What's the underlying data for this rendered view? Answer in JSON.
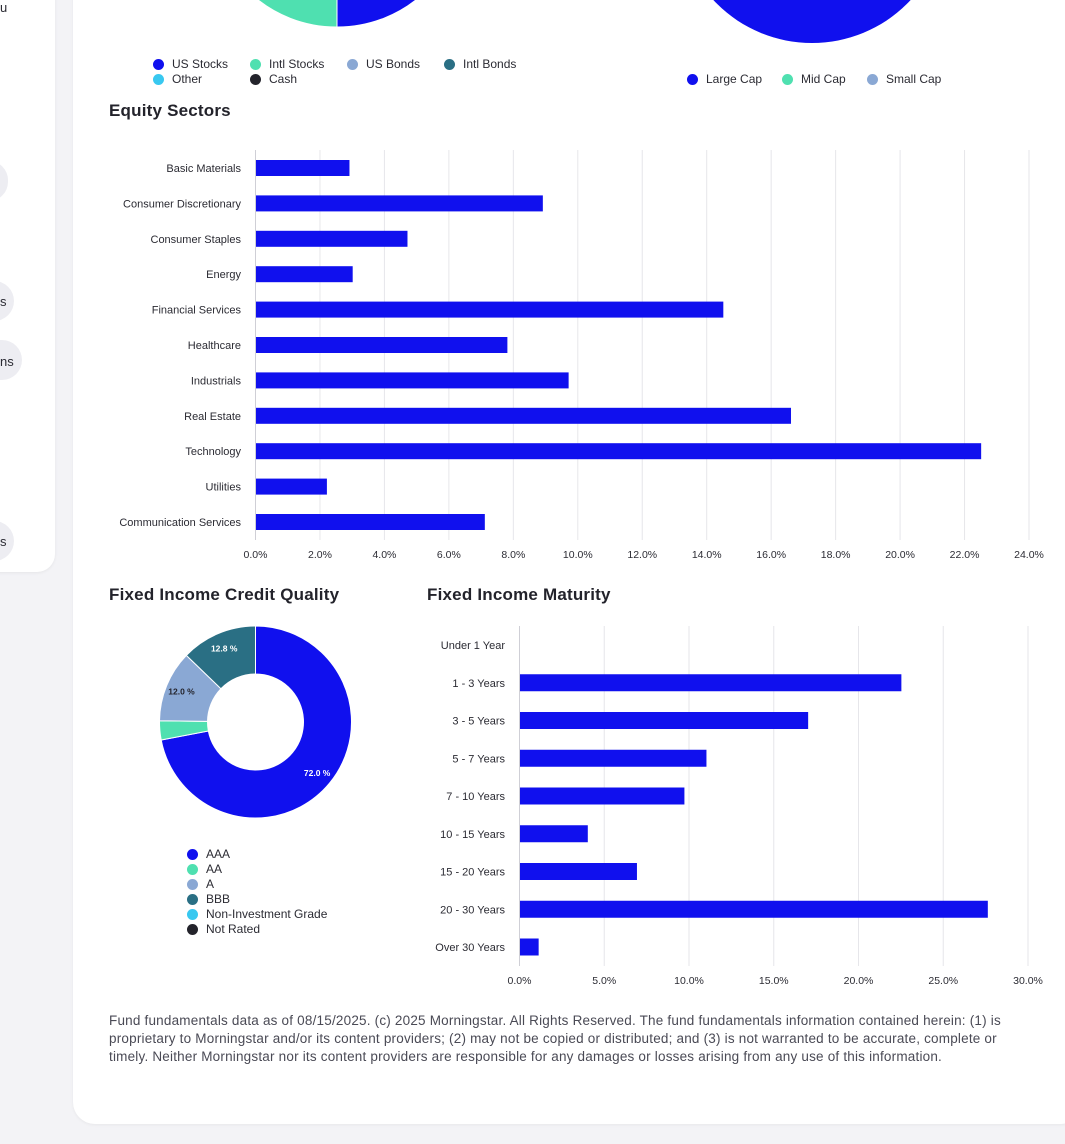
{
  "colors": {
    "us_stocks": "#1010ee",
    "intl_stocks": "#4fe0b0",
    "us_bonds": "#8aa8d4",
    "intl_bonds": "#2a6f84",
    "other": "#38c8f0",
    "cash": "#23232b",
    "bar": "#1010ee"
  },
  "sidebar": {
    "fragments": [
      "u",
      "s",
      "ns",
      "s"
    ]
  },
  "asset_legend": [
    {
      "label": "US Stocks",
      "color": "#1010ee",
      "icon": "legend-dot"
    },
    {
      "label": "Intl Stocks",
      "color": "#4fe0b0",
      "icon": "legend-dot"
    },
    {
      "label": "US Bonds",
      "color": "#8aa8d4",
      "icon": "legend-dot"
    },
    {
      "label": "Intl Bonds",
      "color": "#2a6f84",
      "icon": "legend-dot"
    },
    {
      "label": "Other",
      "color": "#38c8f0",
      "icon": "legend-dot"
    },
    {
      "label": "Cash",
      "color": "#23232b",
      "icon": "legend-dot"
    }
  ],
  "cap_legend": [
    {
      "label": "Large Cap",
      "color": "#1010ee"
    },
    {
      "label": "Mid Cap",
      "color": "#4fe0b0"
    },
    {
      "label": "Small Cap",
      "color": "#8aa8d4"
    }
  ],
  "titles": {
    "equity_sectors": "Equity Sectors",
    "credit_quality": "Fixed Income Credit Quality",
    "maturity": "Fixed Income Maturity"
  },
  "credit_legend": [
    {
      "label": "AAA",
      "color": "#1010ee"
    },
    {
      "label": "AA",
      "color": "#4fe0b0"
    },
    {
      "label": "A",
      "color": "#8aa8d4"
    },
    {
      "label": "BBB",
      "color": "#2a6f84"
    },
    {
      "label": "Non-Investment Grade",
      "color": "#38c8f0"
    },
    {
      "label": "Not Rated",
      "color": "#23232b"
    }
  ],
  "footnote": "Fund fundamentals data as of 08/15/2025. (c) 2025 Morningstar. All Rights Reserved. The fund fundamentals information contained herein: (1) is proprietary to Morningstar and/or its content providers; (2) may not be copied or distributed; and (3) is not warranted to be accurate, complete or timely. Neither Morningstar nor its content providers are responsible for any damages or losses arising from any use of this information.",
  "chart_data": [
    {
      "type": "bar",
      "orientation": "horizontal",
      "title": "Equity Sectors",
      "categories": [
        "Basic Materials",
        "Consumer Discretionary",
        "Consumer Staples",
        "Energy",
        "Financial Services",
        "Healthcare",
        "Industrials",
        "Real Estate",
        "Technology",
        "Utilities",
        "Communication Services"
      ],
      "values": [
        2.9,
        8.9,
        4.7,
        3.0,
        14.5,
        7.8,
        9.7,
        16.6,
        22.5,
        2.2,
        7.1
      ],
      "xlim": [
        0,
        24
      ],
      "ticks": [
        "0.0%",
        "2.0%",
        "4.0%",
        "6.0%",
        "8.0%",
        "10.0%",
        "12.0%",
        "14.0%",
        "16.0%",
        "18.0%",
        "20.0%",
        "22.0%",
        "24.0%"
      ],
      "grid": true
    },
    {
      "type": "pie",
      "donut": true,
      "title": "Fixed Income Credit Quality",
      "categories": [
        "AAA",
        "AA",
        "A",
        "BBB",
        "Non-Investment Grade",
        "Not Rated"
      ],
      "values": [
        72.0,
        3.2,
        12.0,
        12.8,
        0,
        0
      ],
      "data_labels": [
        "72.0 %",
        "",
        "12.0 %",
        "12.8 %",
        "",
        ""
      ],
      "legend": "bottom"
    },
    {
      "type": "bar",
      "orientation": "horizontal",
      "title": "Fixed Income Maturity",
      "categories": [
        "Under 1 Year",
        "1 - 3 Years",
        "3 - 5 Years",
        "5 - 7 Years",
        "7 - 10 Years",
        "10 - 15 Years",
        "15 - 20 Years",
        "20 - 30 Years",
        "Over 30 Years"
      ],
      "values": [
        0,
        22.5,
        17.0,
        11.0,
        9.7,
        4.0,
        6.9,
        27.6,
        1.1
      ],
      "xlim": [
        0,
        30
      ],
      "ticks": [
        "0.0%",
        "5.0%",
        "10.0%",
        "15.0%",
        "20.0%",
        "25.0%",
        "30.0%"
      ],
      "grid": true
    }
  ]
}
